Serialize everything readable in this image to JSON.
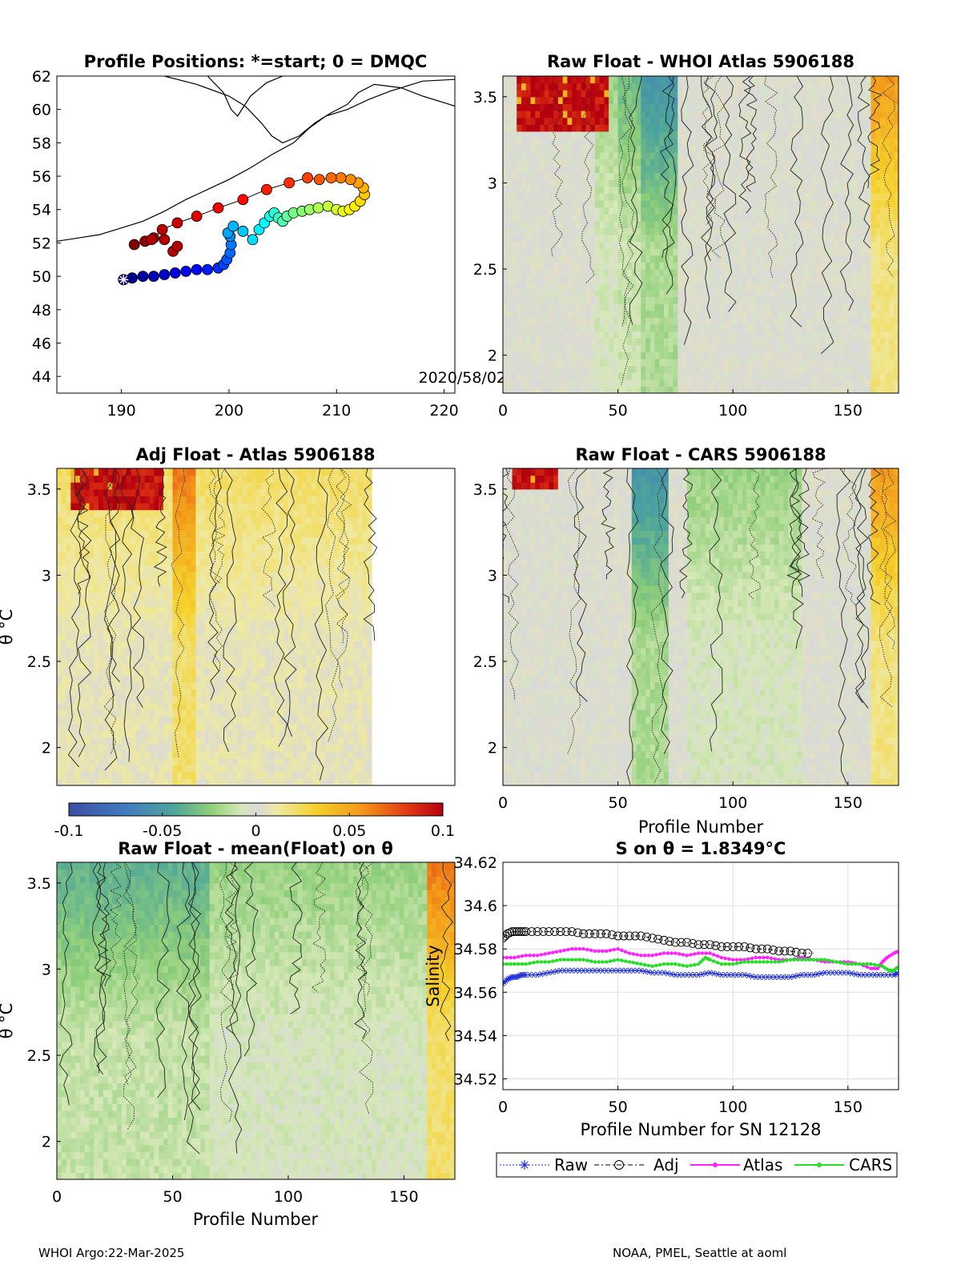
{
  "chart_data": [
    {
      "type": "scatter",
      "title": "Profile Positions: *=start; 0 = DMQC",
      "xlim": [
        184,
        221
      ],
      "ylim": [
        43,
        62
      ],
      "xticks": [
        "190",
        "200",
        "210",
        "220"
      ],
      "yticks": [
        "44",
        "46",
        "48",
        "50",
        "52",
        "54",
        "56",
        "58",
        "60",
        "62"
      ],
      "annotation": "2020/58/02",
      "colormap": "jet",
      "track": {
        "x": [
          190.2,
          191,
          192,
          193,
          194,
          195,
          196,
          197,
          198,
          199,
          199.5,
          199.8,
          200.1,
          200.2,
          200.1,
          199.9,
          200.4,
          201.3,
          202.2,
          202.8,
          203.3,
          203.8,
          204.2,
          204.6,
          205.0,
          205.4,
          206.0,
          206.8,
          207.5,
          208.3,
          209.2,
          210.0,
          210.6,
          211.2,
          211.7,
          212.2,
          212.6,
          212.5,
          212.0,
          211.3,
          210.4,
          209.5,
          208.4,
          207.3,
          205.6,
          203.5,
          201.3,
          199.0,
          197.0,
          195.2,
          193.8,
          193.0,
          192.2,
          191.2
        ],
        "y": [
          49.8,
          49.9,
          50.0,
          50.0,
          50.1,
          50.2,
          50.3,
          50.4,
          50.4,
          50.5,
          50.7,
          51.0,
          51.4,
          51.9,
          52.4,
          52.6,
          53.0,
          52.7,
          52.2,
          52.8,
          53.2,
          53.6,
          53.8,
          53.5,
          53.3,
          53.6,
          53.8,
          53.9,
          54.0,
          54.1,
          54.2,
          54.0,
          53.9,
          54.0,
          54.2,
          54.5,
          54.9,
          55.3,
          55.6,
          55.8,
          55.9,
          55.9,
          55.8,
          55.9,
          55.6,
          55.2,
          54.6,
          54.1,
          53.6,
          53.2,
          52.8,
          52.3,
          52.1,
          51.9
        ],
        "dmqc_positions": [
          [
            194.8,
            51.5
          ],
          [
            195.2,
            51.8
          ],
          [
            194.0,
            52.2
          ],
          [
            192.8,
            52.2
          ]
        ]
      },
      "coastline": [
        [
          [
            184,
            52.1
          ],
          [
            186,
            52.3
          ],
          [
            188,
            52.5
          ],
          [
            190,
            52.9
          ],
          [
            192,
            53.3
          ],
          [
            194,
            53.9
          ],
          [
            196,
            54.6
          ],
          [
            198,
            55.2
          ],
          [
            200,
            55.8
          ],
          [
            202,
            56.5
          ],
          [
            204,
            57.3
          ],
          [
            206,
            58.0
          ],
          [
            207.5,
            58.9
          ],
          [
            209,
            59.6
          ],
          [
            211,
            60.0
          ],
          [
            213,
            60.6
          ],
          [
            215,
            61.1
          ],
          [
            218,
            61.7
          ],
          [
            221,
            61.8
          ]
        ],
        [
          [
            194,
            62
          ],
          [
            197,
            61.5
          ],
          [
            200,
            60.8
          ],
          [
            201.5,
            60.2
          ],
          [
            203,
            59.2
          ],
          [
            204,
            58.4
          ],
          [
            205,
            58.0
          ],
          [
            206.5,
            58.4
          ],
          [
            208,
            59.2
          ],
          [
            209.5,
            59.8
          ],
          [
            211,
            60.3
          ],
          [
            212,
            61.0
          ],
          [
            213.5,
            61.5
          ],
          [
            216,
            61.3
          ],
          [
            218,
            60.8
          ],
          [
            220,
            60.4
          ],
          [
            221,
            60.2
          ]
        ],
        [
          [
            198,
            62
          ],
          [
            199.5,
            61.0
          ],
          [
            200.2,
            60.0
          ],
          [
            200.8,
            59.6
          ],
          [
            201.4,
            60.2
          ],
          [
            202.0,
            60.8
          ],
          [
            203.5,
            61.6
          ],
          [
            205,
            62
          ]
        ]
      ]
    },
    {
      "type": "heatmap",
      "title": "Raw Float - WHOI Atlas  5906188",
      "xlim": [
        0,
        172
      ],
      "ylim": [
        1.78,
        3.62
      ],
      "xticks": [
        "0",
        "50",
        "100",
        "150"
      ],
      "yticks": [
        "2",
        "2.5",
        "3",
        "3.5"
      ],
      "cmap_range": [
        -0.1,
        0.1
      ],
      "warm_patch": {
        "x": [
          5,
          46
        ],
        "y_min": 3.28
      },
      "mean_anomaly": 0.0,
      "stripes": [
        {
          "x": [
            50,
            70
          ],
          "v": -0.03
        },
        {
          "x": [
            60,
            75
          ],
          "v": -0.05
        },
        {
          "x": [
            40,
            50
          ],
          "v": -0.02
        },
        {
          "x": [
            160,
            172
          ],
          "v": 0.05
        }
      ]
    },
    {
      "type": "heatmap",
      "title": "Adj Float - Atlas  5906188",
      "xlim": [
        0,
        172
      ],
      "ylim": [
        1.78,
        3.62
      ],
      "xticks": [],
      "yticks": [
        "2",
        "2.5",
        "3",
        "3.5"
      ],
      "ylabel": "θ °C",
      "cmap_range": [
        -0.1,
        0.1
      ],
      "data_x_max": 136,
      "warm_patch": {
        "x": [
          5,
          45
        ],
        "y_min": 3.38
      },
      "mean_anomaly": 0.02,
      "stripes": [
        {
          "x": [
            50,
            60
          ],
          "v": 0.06
        }
      ]
    },
    {
      "type": "heatmap",
      "title": "Raw Float - CARS  5906188",
      "xlim": [
        0,
        172
      ],
      "ylim": [
        1.78,
        3.62
      ],
      "xticks": [
        "0",
        "50",
        "100",
        "150"
      ],
      "yticks": [
        "2",
        "2.5",
        "3",
        "3.5"
      ],
      "xlabel": "Profile Number",
      "cmap_range": [
        -0.1,
        0.1
      ],
      "warm_patch": {
        "x": [
          4,
          24
        ],
        "y_min": 3.5
      },
      "mean_anomaly": 0.0,
      "stripes": [
        {
          "x": [
            55,
            72
          ],
          "v": -0.05
        },
        {
          "x": [
            80,
            130
          ],
          "v": -0.02
        },
        {
          "x": [
            160,
            172
          ],
          "v": 0.05
        }
      ]
    },
    {
      "type": "heatmap",
      "title": "Raw Float - mean(Float) on θ",
      "xlim": [
        0,
        172
      ],
      "ylim": [
        1.78,
        3.62
      ],
      "xticks": [
        "0",
        "50",
        "100",
        "150"
      ],
      "yticks": [
        "2",
        "2.5",
        "3",
        "3.5"
      ],
      "xlabel": "Profile Number",
      "ylabel": "θ °C",
      "cmap_range": [
        -0.1,
        0.1
      ],
      "warm_patch": null,
      "mean_anomaly": -0.02,
      "stripes": [
        {
          "x": [
            0,
            65
          ],
          "v": -0.035
        },
        {
          "x": [
            160,
            172
          ],
          "v": 0.06
        }
      ]
    },
    {
      "type": "line",
      "title": "S on θ = 1.8349°C",
      "xlabel": "Profile Number for SN 12128",
      "ylabel": "Salinity",
      "xlim": [
        0,
        172
      ],
      "ylim": [
        34.515,
        34.62
      ],
      "xticks": [
        "0",
        "50",
        "100",
        "150"
      ],
      "yticks": [
        "34.52",
        "34.54",
        "34.56",
        "34.58",
        "34.6",
        "34.62"
      ],
      "grid": true,
      "legend_position": "bottom",
      "series": [
        {
          "name": "Raw",
          "color": "#1f2fd6",
          "marker": "star",
          "x": [
            0,
            2,
            4,
            6,
            8,
            10,
            15,
            20,
            25,
            30,
            35,
            40,
            45,
            50,
            55,
            60,
            65,
            70,
            75,
            80,
            85,
            90,
            95,
            100,
            105,
            110,
            115,
            120,
            125,
            130,
            135,
            140,
            145,
            150,
            155,
            160,
            165,
            170,
            172
          ],
          "values": [
            34.564,
            34.566,
            34.567,
            34.567,
            34.568,
            34.568,
            34.568,
            34.569,
            34.57,
            34.57,
            34.57,
            34.57,
            34.57,
            34.57,
            34.57,
            34.57,
            34.569,
            34.569,
            34.568,
            34.568,
            34.568,
            34.569,
            34.568,
            34.568,
            34.568,
            34.567,
            34.567,
            34.567,
            34.567,
            34.568,
            34.568,
            34.569,
            34.569,
            34.569,
            34.568,
            34.568,
            34.568,
            34.568,
            34.569
          ]
        },
        {
          "name": "Adj",
          "color": "#000000",
          "marker": "circle",
          "x": [
            0,
            2,
            4,
            6,
            8,
            10,
            15,
            20,
            25,
            30,
            35,
            40,
            45,
            50,
            55,
            60,
            65,
            70,
            75,
            80,
            85,
            90,
            95,
            100,
            105,
            110,
            115,
            120,
            125,
            130,
            135
          ],
          "values": [
            34.585,
            34.587,
            34.588,
            34.588,
            34.588,
            34.588,
            34.588,
            34.588,
            34.588,
            34.588,
            34.587,
            34.587,
            34.587,
            34.586,
            34.586,
            34.586,
            34.585,
            34.584,
            34.583,
            34.583,
            34.582,
            34.582,
            34.581,
            34.581,
            34.581,
            34.58,
            34.58,
            34.579,
            34.579,
            34.578,
            34.578
          ]
        },
        {
          "name": "Atlas",
          "color": "#ff22ff",
          "marker": "dot",
          "x": [
            0,
            5,
            10,
            15,
            20,
            25,
            30,
            35,
            40,
            45,
            50,
            55,
            60,
            65,
            70,
            75,
            80,
            85,
            90,
            95,
            100,
            105,
            110,
            115,
            120,
            125,
            130,
            135,
            140,
            145,
            150,
            155,
            160,
            163,
            165,
            167,
            170,
            172
          ],
          "values": [
            34.576,
            34.576,
            34.577,
            34.577,
            34.578,
            34.579,
            34.58,
            34.58,
            34.579,
            34.579,
            34.58,
            34.578,
            34.577,
            34.577,
            34.578,
            34.578,
            34.577,
            34.578,
            34.578,
            34.576,
            34.575,
            34.575,
            34.576,
            34.576,
            34.575,
            34.575,
            34.576,
            34.575,
            34.574,
            34.574,
            34.574,
            34.573,
            34.571,
            34.571,
            34.574,
            34.576,
            34.578,
            34.579
          ]
        },
        {
          "name": "CARS",
          "color": "#22e022",
          "marker": "dot",
          "x": [
            0,
            5,
            10,
            15,
            20,
            25,
            30,
            35,
            40,
            45,
            50,
            55,
            60,
            65,
            70,
            75,
            80,
            85,
            88,
            90,
            95,
            100,
            105,
            110,
            115,
            120,
            125,
            130,
            135,
            140,
            145,
            150,
            155,
            160,
            165,
            168,
            170,
            172
          ],
          "values": [
            34.573,
            34.573,
            34.573,
            34.574,
            34.574,
            34.575,
            34.575,
            34.575,
            34.574,
            34.574,
            34.575,
            34.574,
            34.573,
            34.572,
            34.573,
            34.573,
            34.572,
            34.573,
            34.576,
            34.575,
            34.573,
            34.573,
            34.574,
            34.574,
            34.574,
            34.574,
            34.575,
            34.575,
            34.575,
            34.575,
            34.574,
            34.573,
            34.573,
            34.573,
            34.572,
            34.57,
            34.57,
            34.572
          ]
        }
      ]
    }
  ],
  "colorbar": {
    "ticks": [
      "-0.1",
      "-0.05",
      "0",
      "0.05",
      "0.1"
    ]
  },
  "footer": {
    "left": "WHOI Argo:22-Mar-2025",
    "right": "NOAA, PMEL, Seattle at aoml"
  }
}
